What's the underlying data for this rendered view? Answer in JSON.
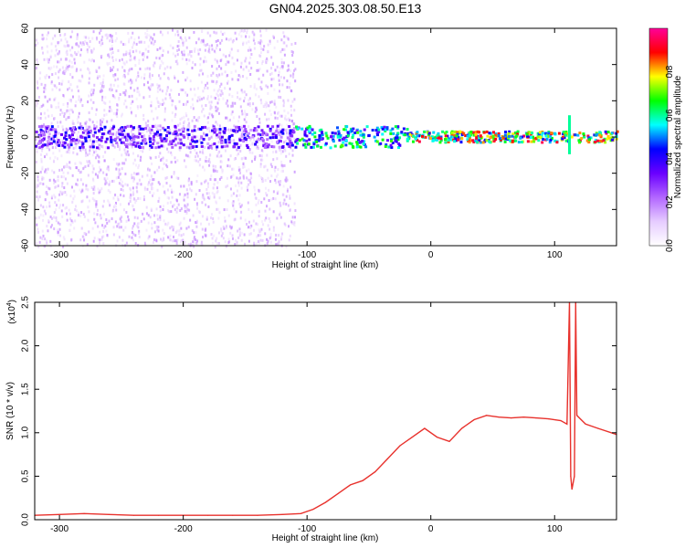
{
  "title": "GN04.2025.303.08.50.E13",
  "chart_data": [
    {
      "type": "heatmap",
      "xlabel": "Height of straight line (km)",
      "ylabel": "Frequency (Hz)",
      "xlim": [
        -320,
        150
      ],
      "ylim": [
        -60,
        60
      ],
      "xticks": [
        -300,
        -200,
        -100,
        0,
        100
      ],
      "yticks": [
        -60,
        -40,
        -20,
        0,
        20,
        40,
        60
      ],
      "colorbar": {
        "label": "Normalized spectral amplitude",
        "range": [
          0,
          1
        ],
        "ticks": [
          0.0,
          0.2,
          0.4,
          0.6,
          0.8
        ],
        "colormap": [
          "#ffffff",
          "#e6ccff",
          "#b266ff",
          "#6a00ff",
          "#0000ff",
          "#00ffff",
          "#00ff00",
          "#ffff00",
          "#ff0000",
          "#ff0099"
        ]
      },
      "features": [
        {
          "kind": "scattered_noise",
          "x_range": [
            -320,
            -110
          ],
          "freq_range": [
            -60,
            60
          ],
          "level": "0.05-0.2"
        },
        {
          "kind": "central_band",
          "x_range": [
            -320,
            -110
          ],
          "freq": 0,
          "half_width": 6,
          "level": "0.15-0.45"
        },
        {
          "kind": "central_band",
          "x_range": [
            -110,
            -20
          ],
          "freq": 0,
          "half_width": 6,
          "level": "0.3-0.7"
        },
        {
          "kind": "central_band",
          "x_range": [
            -20,
            150
          ],
          "freq": 0,
          "half_width": 3,
          "level": "0.4-0.95"
        },
        {
          "kind": "spike",
          "x": 112,
          "freq_range": [
            -8,
            12
          ],
          "level": "0.6"
        }
      ]
    },
    {
      "type": "line",
      "xlabel": "Height of straight line (km)",
      "ylabel": "SNR (10 * v/v)",
      "exponent_label": "(x10",
      "exponent_power": "4",
      "exponent_close": ")",
      "xlim": [
        -320,
        150
      ],
      "ylim": [
        0,
        2.5
      ],
      "xticks": [
        -300,
        -200,
        -100,
        0,
        100
      ],
      "yticks": [
        0.0,
        0.5,
        1.0,
        1.5,
        2.0,
        2.5
      ],
      "series": [
        {
          "color": "#e8312c",
          "points": [
            [
              -320,
              0.05
            ],
            [
              -300,
              0.06
            ],
            [
              -280,
              0.07
            ],
            [
              -260,
              0.06
            ],
            [
              -240,
              0.05
            ],
            [
              -220,
              0.05
            ],
            [
              -200,
              0.05
            ],
            [
              -180,
              0.05
            ],
            [
              -160,
              0.05
            ],
            [
              -140,
              0.05
            ],
            [
              -120,
              0.06
            ],
            [
              -105,
              0.07
            ],
            [
              -95,
              0.12
            ],
            [
              -85,
              0.2
            ],
            [
              -75,
              0.3
            ],
            [
              -65,
              0.4
            ],
            [
              -55,
              0.45
            ],
            [
              -45,
              0.55
            ],
            [
              -35,
              0.7
            ],
            [
              -25,
              0.85
            ],
            [
              -15,
              0.95
            ],
            [
              -5,
              1.05
            ],
            [
              5,
              0.95
            ],
            [
              15,
              0.9
            ],
            [
              25,
              1.05
            ],
            [
              35,
              1.15
            ],
            [
              45,
              1.2
            ],
            [
              55,
              1.18
            ],
            [
              65,
              1.17
            ],
            [
              75,
              1.18
            ],
            [
              85,
              1.17
            ],
            [
              95,
              1.16
            ],
            [
              105,
              1.14
            ],
            [
              110,
              1.1
            ],
            [
              112,
              2.5
            ],
            [
              113,
              0.5
            ],
            [
              114,
              0.35
            ],
            [
              116,
              0.5
            ],
            [
              117,
              2.5
            ],
            [
              118,
              1.2
            ],
            [
              125,
              1.1
            ],
            [
              135,
              1.05
            ],
            [
              150,
              0.98
            ]
          ]
        }
      ]
    }
  ]
}
